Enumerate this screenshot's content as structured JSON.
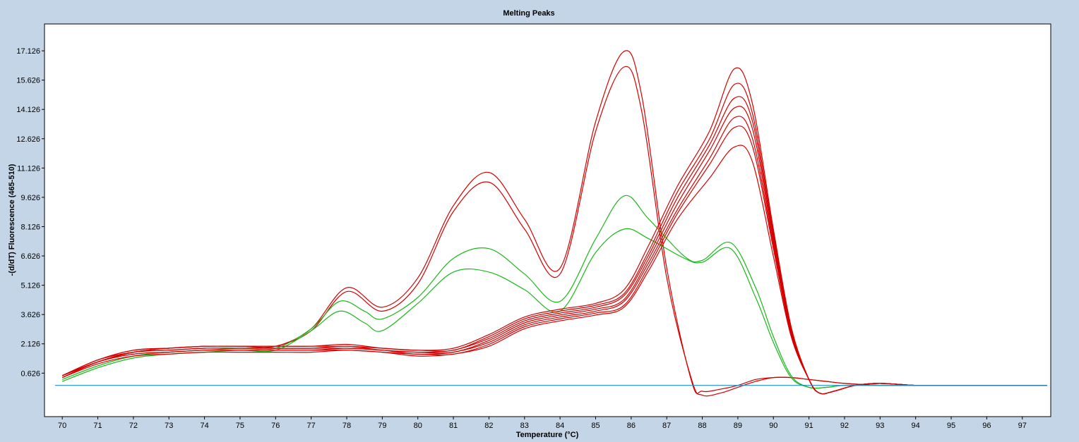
{
  "chart_data": {
    "type": "line",
    "title": "Melting Peaks",
    "xlabel": "Temperature (°C)",
    "ylabel": "-(d/dT) Fluorescence (465-510)",
    "xlim": [
      69.5,
      97.8
    ],
    "ylim": [
      -1.6,
      18.5
    ],
    "x_ticks": [
      70,
      71,
      72,
      73,
      74,
      75,
      76,
      77,
      78,
      79,
      80,
      81,
      82,
      83,
      84,
      85,
      86,
      87,
      88,
      89,
      90,
      91,
      92,
      93,
      94,
      95,
      96,
      97
    ],
    "y_ticks": [
      0.626,
      2.126,
      3.626,
      5.126,
      6.626,
      8.126,
      9.626,
      11.126,
      12.626,
      14.126,
      15.626,
      17.126
    ],
    "y_tick_labels": [
      "0.626",
      "2.126",
      "3.626",
      "5.126",
      "6.626",
      "8.126",
      "9.626",
      "11.126",
      "12.626",
      "14.126",
      "15.626",
      "17.126"
    ],
    "grid": false,
    "legend": "none",
    "series": [
      {
        "color": "#d40000",
        "x": [
          70,
          71,
          72,
          73,
          74,
          75,
          76,
          77,
          78,
          79,
          80,
          81,
          82,
          83,
          84,
          85,
          85.8,
          86.3,
          87,
          87.7,
          88,
          88.5,
          89,
          89.5,
          90,
          90.5,
          91,
          91.5,
          92,
          93,
          94,
          95,
          96,
          97.7
        ],
        "y": [
          0.5,
          1.2,
          1.7,
          1.9,
          2.0,
          2.0,
          2.0,
          2.9,
          5.0,
          4.0,
          5.5,
          9.2,
          10.9,
          8.5,
          6.0,
          13.5,
          17.1,
          14.8,
          6.0,
          0.2,
          -0.3,
          -0.2,
          0.0,
          0.3,
          0.4,
          0.4,
          0.3,
          0.2,
          0.1,
          0.0,
          0.0,
          0.0,
          0.0,
          0.0
        ]
      },
      {
        "color": "#d40000",
        "x": [
          70,
          71,
          72,
          73,
          74,
          75,
          76,
          77,
          78,
          79,
          80,
          81,
          82,
          83,
          84,
          85,
          85.8,
          86.3,
          87,
          87.7,
          88,
          88.5,
          89,
          89.5,
          90,
          90.5,
          91,
          91.5,
          92,
          93,
          94,
          95,
          96,
          97.7
        ],
        "y": [
          0.5,
          1.2,
          1.7,
          1.9,
          2.0,
          2.0,
          2.0,
          2.8,
          4.8,
          3.8,
          5.2,
          8.9,
          10.4,
          8.0,
          5.7,
          13.0,
          16.3,
          14.0,
          5.5,
          0.3,
          -0.5,
          -0.4,
          -0.1,
          0.2,
          0.4,
          0.4,
          0.3,
          0.2,
          0.1,
          0.0,
          0.0,
          0.0,
          0.0,
          0.0
        ]
      },
      {
        "color": "#18b818",
        "x": [
          70,
          71,
          72,
          73,
          74,
          75,
          76,
          77,
          77.8,
          78.5,
          79,
          80,
          81,
          82,
          83,
          84,
          85,
          85.8,
          86.5,
          87.5,
          88,
          88.8,
          89.5,
          90,
          90.5,
          91,
          91.5,
          92,
          93,
          94,
          95,
          96,
          97.7
        ],
        "y": [
          0.3,
          1.0,
          1.5,
          1.7,
          1.8,
          1.9,
          1.9,
          2.9,
          4.3,
          3.8,
          3.4,
          4.5,
          6.5,
          7.0,
          5.7,
          4.3,
          7.5,
          9.7,
          8.5,
          6.6,
          6.4,
          7.3,
          5.0,
          2.5,
          0.5,
          -0.1,
          -0.1,
          0.0,
          0.0,
          0.0,
          0.0,
          0.0,
          0.0
        ]
      },
      {
        "color": "#18b818",
        "x": [
          70,
          71,
          72,
          73,
          74,
          75,
          76,
          77,
          77.8,
          78.5,
          79,
          80,
          81,
          82,
          83,
          84,
          85,
          85.8,
          86.5,
          87.5,
          88,
          88.8,
          89.5,
          90,
          90.5,
          91,
          91.5,
          92,
          93,
          94,
          95,
          96,
          97.7
        ],
        "y": [
          0.2,
          0.9,
          1.4,
          1.6,
          1.7,
          1.8,
          1.8,
          2.8,
          3.8,
          3.2,
          2.8,
          4.2,
          5.8,
          5.8,
          4.9,
          3.8,
          6.8,
          8.0,
          7.5,
          6.5,
          6.3,
          7.0,
          4.5,
          2.2,
          0.4,
          -0.1,
          -0.1,
          0.0,
          0.0,
          0.0,
          0.0,
          0.0,
          0.0
        ]
      },
      {
        "color": "#d40000",
        "x": [
          70,
          71,
          72,
          73,
          74,
          75,
          76,
          77,
          78,
          79,
          80,
          81,
          82,
          83,
          84,
          85,
          85.8,
          86.5,
          87.3,
          88.2,
          88.9,
          89.4,
          90,
          90.5,
          91,
          91.3,
          91.7,
          92.3,
          93,
          94,
          95,
          96,
          97.7
        ],
        "y": [
          0.5,
          1.3,
          1.8,
          1.9,
          2.0,
          2.0,
          2.0,
          2.0,
          2.1,
          1.9,
          1.8,
          1.9,
          2.6,
          3.5,
          3.9,
          4.2,
          4.9,
          7.2,
          10.2,
          13.0,
          16.2,
          14.5,
          8.0,
          3.0,
          0.3,
          -0.4,
          -0.3,
          0.0,
          0.1,
          0.0,
          0.0,
          0.0,
          0.0
        ]
      },
      {
        "color": "#d40000",
        "x": [
          70,
          71,
          72,
          73,
          74,
          75,
          76,
          77,
          78,
          79,
          80,
          81,
          82,
          83,
          84,
          85,
          85.8,
          86.5,
          87.3,
          88.2,
          88.9,
          89.4,
          90,
          90.5,
          91,
          91.3,
          91.7,
          92.3,
          93,
          94,
          95,
          96,
          97.7
        ],
        "y": [
          0.5,
          1.3,
          1.8,
          1.9,
          2.0,
          2.0,
          2.0,
          2.0,
          2.0,
          1.9,
          1.8,
          1.8,
          2.5,
          3.4,
          3.8,
          4.1,
          4.7,
          6.9,
          9.9,
          12.6,
          15.4,
          14.0,
          7.8,
          2.9,
          0.3,
          -0.4,
          -0.3,
          0.0,
          0.1,
          0.0,
          0.0,
          0.0,
          0.0
        ]
      },
      {
        "color": "#d40000",
        "x": [
          70,
          71,
          72,
          73,
          74,
          75,
          76,
          77,
          78,
          79,
          80,
          81,
          82,
          83,
          84,
          85,
          85.8,
          86.5,
          87.3,
          88.2,
          88.9,
          89.4,
          90,
          90.5,
          91,
          91.3,
          91.7,
          92.3,
          93,
          94,
          95,
          96,
          97.7
        ],
        "y": [
          0.4,
          1.2,
          1.7,
          1.8,
          1.9,
          1.9,
          1.9,
          1.9,
          2.0,
          1.8,
          1.7,
          1.8,
          2.4,
          3.3,
          3.7,
          4.0,
          4.6,
          6.7,
          9.6,
          12.3,
          14.7,
          13.6,
          7.6,
          2.8,
          0.3,
          -0.4,
          -0.3,
          0.0,
          0.1,
          0.0,
          0.0,
          0.0,
          0.0
        ]
      },
      {
        "color": "#d40000",
        "x": [
          70,
          71,
          72,
          73,
          74,
          75,
          76,
          77,
          78,
          79,
          80,
          81,
          82,
          83,
          84,
          85,
          85.8,
          86.5,
          87.3,
          88.2,
          88.9,
          89.4,
          90,
          90.5,
          91,
          91.3,
          91.7,
          92.3,
          93,
          94,
          95,
          96,
          97.7
        ],
        "y": [
          0.5,
          1.3,
          1.7,
          1.8,
          1.9,
          1.9,
          1.9,
          1.9,
          1.9,
          1.8,
          1.7,
          1.7,
          2.3,
          3.2,
          3.6,
          3.9,
          4.4,
          6.5,
          9.3,
          12.0,
          14.2,
          13.2,
          7.4,
          2.7,
          0.3,
          -0.4,
          -0.3,
          0.0,
          0.1,
          0.0,
          0.0,
          0.0,
          0.0
        ]
      },
      {
        "color": "#d40000",
        "x": [
          70,
          71,
          72,
          73,
          74,
          75,
          76,
          77,
          78,
          79,
          80,
          81,
          82,
          83,
          84,
          85,
          85.8,
          86.5,
          87.3,
          88.2,
          88.9,
          89.4,
          90,
          90.5,
          91,
          91.3,
          91.7,
          92.3,
          93,
          94,
          95,
          96,
          97.7
        ],
        "y": [
          0.4,
          1.2,
          1.6,
          1.7,
          1.8,
          1.8,
          1.8,
          1.8,
          1.9,
          1.8,
          1.6,
          1.7,
          2.2,
          3.1,
          3.5,
          3.8,
          4.3,
          6.3,
          9.0,
          11.6,
          13.7,
          12.7,
          7.2,
          2.6,
          0.3,
          -0.4,
          -0.3,
          0.0,
          0.1,
          0.0,
          0.0,
          0.0,
          0.0
        ]
      },
      {
        "color": "#d40000",
        "x": [
          70,
          71,
          72,
          73,
          74,
          75,
          76,
          77,
          78,
          79,
          80,
          81,
          82,
          83,
          84,
          85,
          85.8,
          86.5,
          87.3,
          88.2,
          88.9,
          89.4,
          90,
          90.5,
          91,
          91.3,
          91.7,
          92.3,
          93,
          94,
          95,
          96,
          97.7
        ],
        "y": [
          0.5,
          1.2,
          1.6,
          1.7,
          1.8,
          1.8,
          1.8,
          1.8,
          1.8,
          1.7,
          1.6,
          1.6,
          2.1,
          3.0,
          3.4,
          3.7,
          4.1,
          6.1,
          8.8,
          11.3,
          13.2,
          12.3,
          7.0,
          2.6,
          0.3,
          -0.4,
          -0.3,
          0.0,
          0.1,
          0.0,
          0.0,
          0.0,
          0.0
        ]
      },
      {
        "color": "#d40000",
        "x": [
          70,
          71,
          72,
          73,
          74,
          75,
          76,
          77,
          78,
          79,
          80,
          81,
          82,
          83,
          84,
          85,
          85.8,
          86.5,
          87.3,
          88.2,
          88.9,
          89.4,
          90,
          90.5,
          91,
          91.3,
          91.7,
          92.3,
          93,
          94,
          95,
          96,
          97.7
        ],
        "y": [
          0.4,
          1.1,
          1.5,
          1.6,
          1.7,
          1.7,
          1.7,
          1.7,
          1.8,
          1.7,
          1.5,
          1.6,
          2.0,
          2.9,
          3.3,
          3.6,
          4.0,
          5.9,
          8.5,
          10.6,
          12.2,
          11.5,
          6.6,
          2.5,
          0.3,
          -0.4,
          -0.3,
          0.0,
          0.1,
          0.0,
          0.0,
          0.0,
          0.0
        ]
      },
      {
        "color": "#1f8fc4",
        "x": [
          69.8,
          97.7
        ],
        "y": [
          0.0,
          0.0
        ]
      }
    ]
  }
}
